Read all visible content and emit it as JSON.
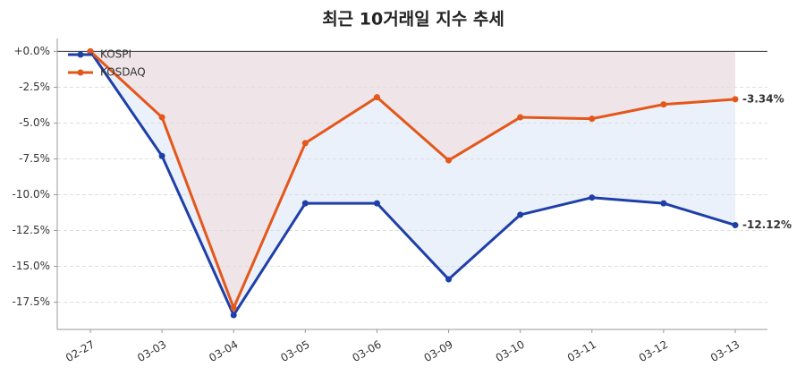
{
  "chart_data": {
    "type": "line",
    "title": "최근 10거래일 지수 추세",
    "categories": [
      "02-27",
      "03-03",
      "03-04",
      "03-05",
      "03-06",
      "03-09",
      "03-10",
      "03-11",
      "03-12",
      "03-13"
    ],
    "series": [
      {
        "name": "KOSPI",
        "color": "#1f3fa8",
        "fill": "#e8eef9",
        "values": [
          0,
          -7.3,
          -18.4,
          -10.6,
          -10.6,
          -15.9,
          -11.4,
          -10.2,
          -10.6,
          -12.12
        ],
        "value_labels": [
          null,
          null,
          null,
          null,
          null,
          null,
          null,
          null,
          null,
          "-12.12%"
        ]
      },
      {
        "name": "KOSDAQ",
        "color": "#e4571a",
        "fill": "#f0e3e5",
        "values": [
          0,
          -4.6,
          -17.9,
          -6.4,
          -3.2,
          -7.6,
          -4.6,
          -4.7,
          -3.7,
          -3.34
        ],
        "value_labels": [
          null,
          null,
          null,
          null,
          null,
          null,
          null,
          null,
          null,
          "-3.34%"
        ]
      }
    ],
    "ylim": [
      -19.4,
      0.9
    ],
    "yticks": [
      {
        "value": 0,
        "label": "+0.0%"
      },
      {
        "value": -2.5,
        "label": "-2.5%"
      },
      {
        "value": -5,
        "label": "-5.0%"
      },
      {
        "value": -7.5,
        "label": "-7.5%"
      },
      {
        "value": -10,
        "label": "-10.0%"
      },
      {
        "value": -12.5,
        "label": "-12.5%"
      },
      {
        "value": -15,
        "label": "-15.0%"
      },
      {
        "value": -17.5,
        "label": "-17.5%"
      }
    ],
    "grid": true,
    "legend": "upper-left"
  }
}
